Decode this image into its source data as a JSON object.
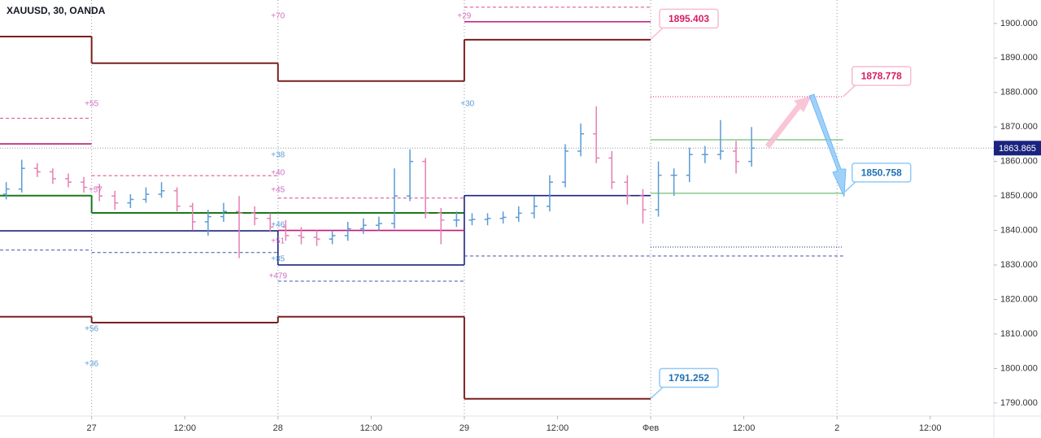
{
  "chart_data": {
    "type": "ohlc",
    "title": "XAUUSD, 30, OANDA",
    "xlim": [
      -11.8,
      116.2
    ],
    "xticks": [
      {
        "value": 0,
        "label": "27"
      },
      {
        "value": 12,
        "label": "12:00"
      },
      {
        "value": 24,
        "label": "28"
      },
      {
        "value": 36,
        "label": "12:00"
      },
      {
        "value": 48,
        "label": "29"
      },
      {
        "value": 60,
        "label": "12:00"
      },
      {
        "value": 72,
        "label": "Фев"
      },
      {
        "value": 84,
        "label": "12:00"
      },
      {
        "value": 96,
        "label": "2"
      },
      {
        "value": 108,
        "label": "12:00"
      }
    ],
    "separators": [
      0,
      24,
      48,
      72,
      96
    ],
    "ylim": [
      1786.2,
      1906.8
    ],
    "yticks": [
      {
        "value": 1790,
        "label": "1790.000"
      },
      {
        "value": 1800,
        "label": "1800.000"
      },
      {
        "value": 1810,
        "label": "1810.000"
      },
      {
        "value": 1820,
        "label": "1820.000"
      },
      {
        "value": 1830,
        "label": "1830.000"
      },
      {
        "value": 1840,
        "label": "1840.000"
      },
      {
        "value": 1850,
        "label": "1850.000"
      },
      {
        "value": 1860,
        "label": "1860.000"
      },
      {
        "value": 1870,
        "label": "1870.000"
      },
      {
        "value": 1880,
        "label": "1880.000"
      },
      {
        "value": 1890,
        "label": "1890.000"
      },
      {
        "value": 1900,
        "label": "1900.000"
      }
    ],
    "current": 1863.865,
    "up_color": "#5b9bd5",
    "down_color": "#e57fb4",
    "x": [
      -11,
      -9,
      -7,
      -5,
      -3,
      -1,
      1,
      3,
      5,
      7,
      9,
      11,
      13,
      15,
      17,
      19,
      21,
      23,
      25,
      27,
      29,
      31,
      33,
      35,
      37,
      39,
      41,
      43,
      45,
      47,
      49,
      51,
      53,
      55,
      57,
      59,
      61,
      63,
      65,
      67,
      69,
      71,
      73,
      75,
      77,
      79,
      81,
      83,
      85
    ],
    "open": [
      1850.5,
      1852,
      1858,
      1857,
      1855,
      1854,
      1852.5,
      1850,
      1848,
      1849,
      1850.5,
      1851.5,
      1847,
      1842.5,
      1844,
      1845.5,
      1845,
      1843.5,
      1841,
      1838.5,
      1838,
      1837.5,
      1838.5,
      1840.5,
      1841.5,
      1842,
      1850,
      1860,
      1845,
      1843,
      1843,
      1843.2,
      1843.5,
      1843.8,
      1845,
      1847,
      1854,
      1863,
      1868,
      1861,
      1854,
      1850,
      1846,
      1856,
      1856,
      1862,
      1862,
      1863,
      1860
    ],
    "high": [
      1854,
      1860.5,
      1859.5,
      1858,
      1856.5,
      1855.5,
      1853.5,
      1851.5,
      1850.5,
      1852.5,
      1854,
      1852.5,
      1848,
      1846,
      1848,
      1850,
      1847,
      1845,
      1843,
      1841,
      1840,
      1840,
      1842.5,
      1843.5,
      1844,
      1858,
      1863.5,
      1861,
      1846.5,
      1845.5,
      1845,
      1845,
      1845.5,
      1847,
      1850,
      1856,
      1865,
      1871,
      1876,
      1863,
      1856,
      1852,
      1860,
      1858,
      1864,
      1864.5,
      1872,
      1866,
      1870
    ],
    "low": [
      1849,
      1851,
      1855.5,
      1853.5,
      1852.5,
      1851,
      1848.5,
      1846,
      1846.5,
      1848,
      1849.5,
      1845.5,
      1840,
      1838.5,
      1842.5,
      1832,
      1841.5,
      1839.5,
      1837,
      1836,
      1835.5,
      1836,
      1837,
      1839,
      1840,
      1840.5,
      1848.5,
      1843.5,
      1836,
      1841,
      1841.5,
      1841.5,
      1842,
      1842.5,
      1843.5,
      1845.5,
      1852.5,
      1861.5,
      1859.5,
      1852,
      1847.5,
      1842,
      1844,
      1850,
      1854,
      1859.5,
      1860.5,
      1856.5,
      1858.5
    ],
    "close": [
      1852,
      1858,
      1857,
      1855,
      1854,
      1852.5,
      1850,
      1848,
      1849,
      1850.5,
      1851.5,
      1847,
      1842.5,
      1844,
      1845.5,
      1845,
      1843.5,
      1841,
      1838.5,
      1838,
      1837.5,
      1838.5,
      1840.5,
      1841.5,
      1842,
      1850,
      1860,
      1845,
      1843,
      1843,
      1843.2,
      1843.5,
      1843.8,
      1845,
      1847,
      1854,
      1863,
      1868,
      1861,
      1854,
      1850,
      1846,
      1856,
      1856,
      1862,
      1862,
      1863,
      1860,
      1863.865
    ],
    "levels": [
      {
        "color": "#7a1f1f",
        "width": 2,
        "dash": "none",
        "connect": true,
        "x": [
          -11.8,
          0,
          24,
          48
        ],
        "values": [
          1896.2,
          1888.5,
          1883.3,
          1895.3
        ],
        "x_end": 72
      },
      {
        "color": "#7a1f1f",
        "width": 2,
        "dash": "none",
        "connect": true,
        "x": [
          -11.8,
          0,
          24,
          48
        ],
        "values": [
          1815.0,
          1813.3,
          1815.0,
          1791.2
        ],
        "x_end": 72
      },
      {
        "color": "#1a7a1a",
        "width": 2,
        "dash": "none",
        "connect": true,
        "x": [
          -11.8,
          0,
          24
        ],
        "values": [
          1850.1,
          1845.1,
          1845.1
        ],
        "x_end": 48
      },
      {
        "color": "#1a237e",
        "width": 1.6,
        "dash": "none",
        "connect": true,
        "x": [
          -11.8,
          24,
          48
        ],
        "values": [
          1839.9,
          1830.0,
          1850.1
        ],
        "x_end": 72
      },
      {
        "color": "#c2187a",
        "width": 1.6,
        "dash": "none",
        "connect": false,
        "x": [
          -11.8,
          0,
          24,
          48
        ],
        "values": [
          1865.1,
          null,
          1840.0,
          1900.5
        ],
        "x_end": 72
      },
      {
        "color": "#d6458f",
        "width": 1,
        "dash": "4,3",
        "connect": false,
        "x": [
          -11.8,
          0,
          24,
          48
        ],
        "values": [
          1872.5,
          1855.9,
          1849.4,
          1904.7
        ],
        "x_end": 72
      },
      {
        "color": "#3f51b5",
        "width": 1,
        "dash": "4,3",
        "connect": false,
        "x": [
          -11.8,
          0,
          24,
          48
        ],
        "values": [
          1834.3,
          1833.6,
          1825.3,
          1832.6
        ],
        "x_end": 96.8
      },
      {
        "color": "#4caf50",
        "width": 1,
        "dash": "none",
        "connect": false,
        "x": [
          72
        ],
        "values": [
          1866.3
        ],
        "x_end": 96.8
      },
      {
        "color": "#4caf50",
        "width": 1,
        "dash": "none",
        "connect": false,
        "x": [
          72
        ],
        "values": [
          1850.758
        ],
        "x_end": 96.8
      },
      {
        "color": "#e91e63",
        "width": 1,
        "dash": "1,2",
        "connect": false,
        "x": [
          72
        ],
        "values": [
          1878.778
        ],
        "x_end": 96.8
      },
      {
        "color": "#1a237e",
        "width": 1,
        "dash": "1,2",
        "connect": false,
        "x": [
          72
        ],
        "values": [
          1835.2
        ],
        "x_end": 96.8
      }
    ],
    "annotations": [
      {
        "text": "+70",
        "x": 24,
        "y": 1902.1,
        "color": "#d070c0"
      },
      {
        "text": "+29",
        "x": 48,
        "y": 1902.1,
        "color": "#d070c0"
      },
      {
        "text": "+55",
        "x": 0,
        "y": 1876.7,
        "color": "#d070c0"
      },
      {
        "text": "+30",
        "x": 48.4,
        "y": 1876.7,
        "color": "#5b9bd5"
      },
      {
        "text": "+38",
        "x": 24,
        "y": 1861.8,
        "color": "#5b9bd5"
      },
      {
        "text": "+40",
        "x": 24,
        "y": 1856.7,
        "color": "#d070c0"
      },
      {
        "text": "+45",
        "x": 24,
        "y": 1851.7,
        "color": "#d070c0"
      },
      {
        "text": "+57",
        "x": 0.5,
        "y": 1851.7,
        "color": "#d070c0"
      },
      {
        "text": "+46",
        "x": 24,
        "y": 1841.6,
        "color": "#5b9bd5"
      },
      {
        "text": "+51",
        "x": 24,
        "y": 1836.9,
        "color": "#d070c0"
      },
      {
        "text": "+85",
        "x": 24,
        "y": 1831.7,
        "color": "#5b9bd5"
      },
      {
        "text": "+479",
        "x": 24,
        "y": 1826.7,
        "color": "#d070c0"
      },
      {
        "text": "+56",
        "x": 0,
        "y": 1811.4,
        "color": "#5b9bd5"
      },
      {
        "text": "+36",
        "x": 0,
        "y": 1801.3,
        "color": "#5b9bd5"
      }
    ],
    "callouts": [
      {
        "x": 72,
        "value": 1895.403,
        "color": "#d81b60",
        "border": "#f8bbd0"
      },
      {
        "x": 96.8,
        "value": 1878.778,
        "color": "#d81b60",
        "border": "#f8bbd0"
      },
      {
        "x": 96.8,
        "value": 1850.758,
        "color": "#1e6fb5",
        "border": "#90caf9"
      },
      {
        "x": 72,
        "value": 1791.252,
        "color": "#1e6fb5",
        "border": "#90caf9"
      }
    ]
  }
}
